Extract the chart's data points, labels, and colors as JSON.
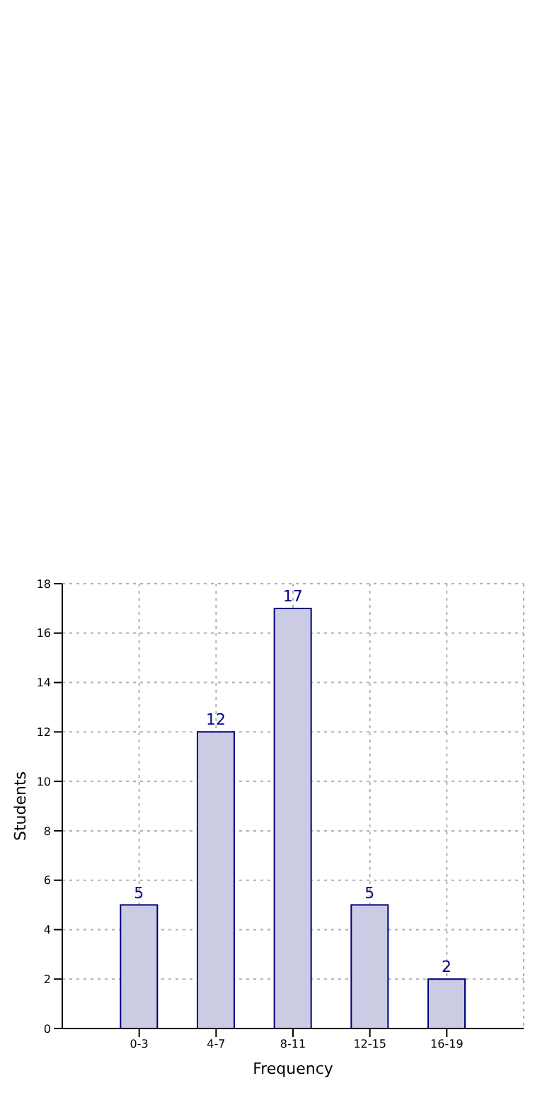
{
  "chart_data": {
    "type": "bar",
    "xlabel": "Frequency",
    "ylabel": "Students",
    "categories": [
      "0-3",
      "4-7",
      "8-11",
      "12-15",
      "16-19"
    ],
    "values": [
      5,
      12,
      17,
      5,
      2
    ],
    "color": "#cbcbe3",
    "ylim": [
      0,
      18
    ],
    "yticks": [
      0,
      2,
      4,
      6,
      8,
      10,
      12,
      14,
      16,
      18
    ],
    "grid": true,
    "data_labels": true
  }
}
